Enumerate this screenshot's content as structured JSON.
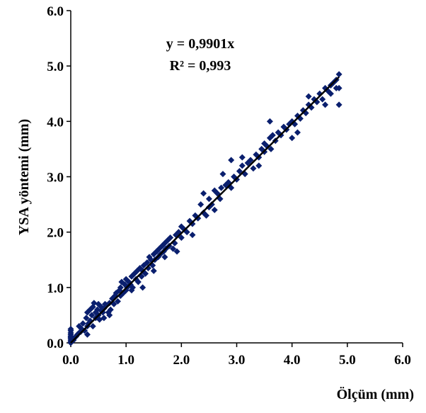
{
  "chart_data": {
    "type": "scatter",
    "title": "",
    "xlabel": "Ölçüm (mm)",
    "ylabel": "YSA yöntemi (mm)",
    "xlim": [
      0,
      6
    ],
    "ylim": [
      0,
      6
    ],
    "xticks": [
      "0.0",
      "1.0",
      "2.0",
      "3.0",
      "4.0",
      "5.0",
      "6.0"
    ],
    "yticks": [
      "0.0",
      "1.0",
      "2.0",
      "3.0",
      "4.0",
      "5.0",
      "6.0"
    ],
    "grid": false,
    "legend": "none",
    "marker_color": "#0a1f6e",
    "trendline": {
      "slope": 0.9901,
      "intercept": 0,
      "color": "#000000"
    },
    "annotations": [
      "y = 0,9901x",
      "R² = 0,993"
    ],
    "series": [
      {
        "points": [
          [
            0.0,
            0.02
          ],
          [
            0.0,
            0.05
          ],
          [
            0.0,
            0.08
          ],
          [
            0.0,
            0.12
          ],
          [
            0.0,
            0.15
          ],
          [
            0.0,
            0.18
          ],
          [
            0.0,
            0.22
          ],
          [
            0.0,
            0.25
          ],
          [
            0.0,
            0.0
          ],
          [
            0.0,
            0.1
          ],
          [
            0.05,
            0.05
          ],
          [
            0.08,
            0.1
          ],
          [
            0.1,
            0.12
          ],
          [
            0.12,
            0.15
          ],
          [
            0.15,
            0.18
          ],
          [
            0.15,
            0.3
          ],
          [
            0.18,
            0.2
          ],
          [
            0.2,
            0.25
          ],
          [
            0.22,
            0.35
          ],
          [
            0.25,
            0.22
          ],
          [
            0.28,
            0.45
          ],
          [
            0.3,
            0.3
          ],
          [
            0.3,
            0.55
          ],
          [
            0.32,
            0.35
          ],
          [
            0.35,
            0.4
          ],
          [
            0.35,
            0.6
          ],
          [
            0.38,
            0.5
          ],
          [
            0.4,
            0.65
          ],
          [
            0.4,
            0.3
          ],
          [
            0.42,
            0.72
          ],
          [
            0.45,
            0.45
          ],
          [
            0.45,
            0.55
          ],
          [
            0.48,
            0.6
          ],
          [
            0.5,
            0.7
          ],
          [
            0.5,
            0.5
          ],
          [
            0.52,
            0.42
          ],
          [
            0.55,
            0.58
          ],
          [
            0.55,
            0.65
          ],
          [
            0.58,
            0.55
          ],
          [
            0.6,
            0.62
          ],
          [
            0.62,
            0.7
          ],
          [
            0.65,
            0.68
          ],
          [
            0.68,
            0.55
          ],
          [
            0.7,
            0.72
          ],
          [
            0.72,
            0.6
          ],
          [
            0.75,
            0.8
          ],
          [
            0.78,
            0.7
          ],
          [
            0.8,
            0.85
          ],
          [
            0.82,
            0.9
          ],
          [
            0.85,
            0.75
          ],
          [
            0.88,
            0.95
          ],
          [
            0.9,
            0.85
          ],
          [
            0.9,
            1.0
          ],
          [
            0.92,
            1.1
          ],
          [
            0.95,
            0.9
          ],
          [
            0.98,
            1.05
          ],
          [
            1.0,
            0.95
          ],
          [
            1.0,
            1.15
          ],
          [
            1.02,
            1.0
          ],
          [
            1.05,
            1.1
          ],
          [
            1.08,
            1.05
          ],
          [
            1.1,
            1.2
          ],
          [
            1.12,
            1.0
          ],
          [
            1.15,
            1.25
          ],
          [
            1.18,
            1.15
          ],
          [
            1.2,
            1.3
          ],
          [
            1.22,
            1.1
          ],
          [
            1.25,
            1.35
          ],
          [
            1.28,
            1.2
          ],
          [
            1.3,
            1.3
          ],
          [
            1.32,
            1.4
          ],
          [
            1.35,
            1.25
          ],
          [
            1.38,
            1.45
          ],
          [
            1.4,
            1.35
          ],
          [
            1.42,
            1.55
          ],
          [
            1.45,
            1.5
          ],
          [
            1.48,
            1.4
          ],
          [
            1.5,
            1.6
          ],
          [
            1.52,
            1.5
          ],
          [
            1.55,
            1.65
          ],
          [
            1.58,
            1.55
          ],
          [
            1.6,
            1.7
          ],
          [
            1.62,
            1.6
          ],
          [
            1.65,
            1.75
          ],
          [
            1.68,
            1.65
          ],
          [
            1.7,
            1.8
          ],
          [
            1.72,
            1.7
          ],
          [
            1.75,
            1.85
          ],
          [
            1.78,
            1.75
          ],
          [
            1.8,
            1.9
          ],
          [
            1.85,
            1.7
          ],
          [
            1.88,
            1.8
          ],
          [
            1.9,
            1.95
          ],
          [
            1.92,
            1.65
          ],
          [
            1.95,
            2.0
          ],
          [
            2.0,
            1.9
          ],
          [
            2.0,
            2.1
          ],
          [
            2.05,
            2.05
          ],
          [
            2.1,
            2.0
          ],
          [
            2.15,
            2.2
          ],
          [
            2.2,
            2.15
          ],
          [
            2.25,
            2.3
          ],
          [
            2.3,
            2.25
          ],
          [
            2.35,
            2.5
          ],
          [
            2.4,
            2.35
          ],
          [
            2.45,
            2.3
          ],
          [
            2.5,
            2.6
          ],
          [
            2.5,
            2.45
          ],
          [
            2.55,
            2.5
          ],
          [
            2.6,
            2.4
          ],
          [
            2.65,
            2.7
          ],
          [
            2.7,
            2.6
          ],
          [
            2.72,
            2.8
          ],
          [
            2.75,
            3.05
          ],
          [
            2.8,
            2.85
          ],
          [
            2.85,
            2.9
          ],
          [
            2.9,
            2.8
          ],
          [
            2.95,
            3.0
          ],
          [
            3.0,
            2.95
          ],
          [
            3.05,
            3.1
          ],
          [
            3.1,
            3.2
          ],
          [
            3.15,
            3.05
          ],
          [
            3.2,
            3.25
          ],
          [
            3.25,
            3.3
          ],
          [
            3.3,
            3.15
          ],
          [
            3.35,
            3.4
          ],
          [
            3.4,
            3.35
          ],
          [
            3.45,
            3.5
          ],
          [
            3.5,
            3.45
          ],
          [
            3.5,
            3.6
          ],
          [
            3.55,
            3.55
          ],
          [
            3.6,
            3.7
          ],
          [
            3.62,
            3.5
          ],
          [
            3.65,
            3.75
          ],
          [
            3.7,
            3.65
          ],
          [
            3.75,
            3.8
          ],
          [
            3.8,
            3.75
          ],
          [
            3.85,
            3.9
          ],
          [
            3.9,
            3.85
          ],
          [
            3.95,
            3.95
          ],
          [
            4.0,
            4.0
          ],
          [
            4.05,
            3.95
          ],
          [
            4.1,
            4.1
          ],
          [
            4.15,
            4.05
          ],
          [
            4.2,
            4.2
          ],
          [
            4.25,
            4.15
          ],
          [
            4.3,
            4.3
          ],
          [
            4.35,
            4.25
          ],
          [
            4.4,
            4.4
          ],
          [
            4.45,
            4.35
          ],
          [
            4.5,
            4.5
          ],
          [
            4.55,
            4.4
          ],
          [
            4.6,
            4.6
          ],
          [
            4.65,
            4.55
          ],
          [
            4.7,
            4.65
          ],
          [
            4.75,
            4.7
          ],
          [
            4.8,
            4.75
          ],
          [
            4.85,
            4.85
          ],
          [
            4.85,
            4.6
          ],
          [
            4.85,
            4.3
          ],
          [
            0.7,
            0.5
          ],
          [
            1.3,
            1.0
          ],
          [
            1.5,
            1.3
          ],
          [
            2.4,
            2.7
          ],
          [
            2.9,
            3.3
          ],
          [
            3.4,
            3.2
          ],
          [
            3.6,
            4.0
          ],
          [
            4.0,
            3.7
          ],
          [
            4.1,
            3.8
          ],
          [
            4.3,
            4.45
          ],
          [
            4.6,
            4.3
          ],
          [
            4.7,
            4.5
          ],
          [
            4.8,
            4.6
          ],
          [
            0.3,
            0.15
          ],
          [
            0.6,
            0.45
          ],
          [
            1.1,
            0.95
          ],
          [
            1.7,
            1.55
          ],
          [
            2.2,
            1.95
          ],
          [
            2.6,
            2.75
          ],
          [
            3.1,
            3.35
          ]
        ]
      }
    ]
  }
}
